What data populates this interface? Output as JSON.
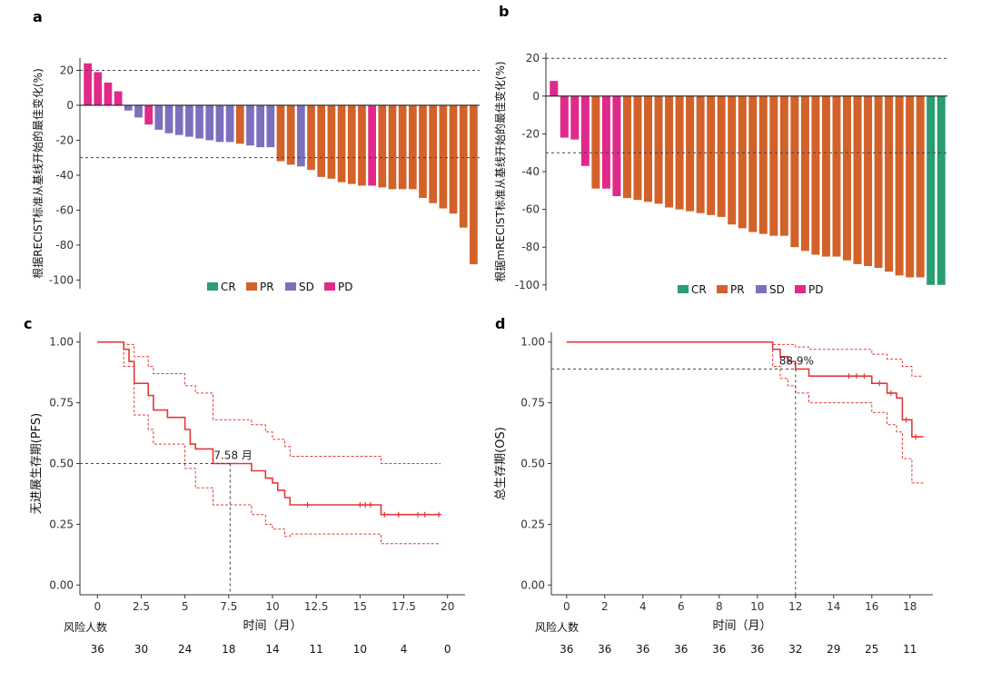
{
  "colors": {
    "CR": "#2a9d72",
    "PR": "#d2622a",
    "SD": "#7c70bd",
    "PD": "#e0298a",
    "km": "#e03a3a",
    "ref": "#444444"
  },
  "chart_data": [
    {
      "panel": "a",
      "type": "bar",
      "ylabel": "根据RECIST标准从基线开始的最佳变化(%)",
      "ylim": [
        -105,
        27
      ],
      "yticks": [
        20,
        0,
        -20,
        -40,
        -60,
        -80,
        -100
      ],
      "ref_lines": [
        20,
        -30
      ],
      "legend": [
        "CR",
        "PR",
        "SD",
        "PD"
      ],
      "values": [
        24,
        19,
        13,
        8,
        -3,
        -7,
        -11,
        -14,
        -16,
        -17,
        -18,
        -19,
        -20,
        -21,
        -21,
        -22,
        -23,
        -24,
        -24,
        -32,
        -34,
        -35,
        -37,
        -41,
        -42,
        -44,
        -45,
        -46,
        -46,
        -47,
        -48,
        -48,
        -48,
        -53,
        -56,
        -59,
        -62,
        -70,
        -91
      ],
      "groups": [
        "PD",
        "PD",
        "PD",
        "PD",
        "SD",
        "SD",
        "PD",
        "SD",
        "SD",
        "SD",
        "SD",
        "SD",
        "SD",
        "SD",
        "SD",
        "PR",
        "SD",
        "SD",
        "SD",
        "PR",
        "PR",
        "SD",
        "PR",
        "PR",
        "PR",
        "PR",
        "PR",
        "PR",
        "PD",
        "PR",
        "PR",
        "PR",
        "PR",
        "PR",
        "PR",
        "PR",
        "PR",
        "PR",
        "PR"
      ]
    },
    {
      "panel": "b",
      "type": "bar",
      "ylabel": "根据mRECIST标准从基线开始的最佳变化(%)",
      "ylim": [
        -103,
        23
      ],
      "yticks": [
        20,
        0,
        -20,
        -40,
        -60,
        -80,
        -100
      ],
      "ref_lines": [
        20,
        -30
      ],
      "legend": [
        "CR",
        "PR",
        "SD",
        "PD"
      ],
      "values": [
        8,
        -22,
        -23,
        -37,
        -49,
        -49,
        -53,
        -54,
        -55,
        -56,
        -57,
        -59,
        -60,
        -61,
        -62,
        -63,
        -64,
        -68,
        -70,
        -72,
        -73,
        -74,
        -74,
        -80,
        -82,
        -84,
        -85,
        -85,
        -87,
        -89,
        -90,
        -91,
        -93,
        -95,
        -96,
        -96,
        -100,
        -100
      ],
      "groups": [
        "PD",
        "PD",
        "PD",
        "PD",
        "PR",
        "PD",
        "PD",
        "PR",
        "PR",
        "PR",
        "PR",
        "PR",
        "PR",
        "PR",
        "PR",
        "PR",
        "PR",
        "PR",
        "PR",
        "PR",
        "PR",
        "PR",
        "PR",
        "PR",
        "PR",
        "PR",
        "PR",
        "PR",
        "PR",
        "PR",
        "PR",
        "PR",
        "PR",
        "PR",
        "PR",
        "PR",
        "CR",
        "CR"
      ]
    },
    {
      "panel": "c",
      "type": "line",
      "ylabel": "无进展生存期(PFS)",
      "xlabel": "时间（月）",
      "xlim": [
        -1,
        21
      ],
      "ylim": [
        -0.04,
        1.04
      ],
      "xticks": [
        0,
        2.5,
        5,
        7.5,
        10,
        12.5,
        15,
        17.5,
        20
      ],
      "yticks": [
        0,
        0.25,
        0.5,
        0.75,
        1.0
      ],
      "ytick_labels": [
        "0.00",
        "0.25",
        "0.50",
        "0.75",
        "1.00"
      ],
      "median": {
        "x": 7.58,
        "y": 0.5,
        "label": "7.58 月"
      },
      "step": [
        [
          0,
          1.0
        ],
        [
          1.5,
          1.0
        ],
        [
          1.5,
          0.97
        ],
        [
          1.8,
          0.97
        ],
        [
          1.8,
          0.92
        ],
        [
          2.1,
          0.92
        ],
        [
          2.1,
          0.83
        ],
        [
          2.9,
          0.83
        ],
        [
          2.9,
          0.78
        ],
        [
          3.2,
          0.78
        ],
        [
          3.2,
          0.72
        ],
        [
          4.0,
          0.72
        ],
        [
          4.0,
          0.69
        ],
        [
          5.0,
          0.69
        ],
        [
          5.0,
          0.64
        ],
        [
          5.3,
          0.64
        ],
        [
          5.3,
          0.58
        ],
        [
          5.6,
          0.58
        ],
        [
          5.6,
          0.56
        ],
        [
          6.6,
          0.56
        ],
        [
          6.6,
          0.5
        ],
        [
          8.8,
          0.5
        ],
        [
          8.8,
          0.47
        ],
        [
          9.6,
          0.47
        ],
        [
          9.6,
          0.44
        ],
        [
          10.0,
          0.44
        ],
        [
          10.0,
          0.42
        ],
        [
          10.3,
          0.42
        ],
        [
          10.3,
          0.39
        ],
        [
          10.7,
          0.39
        ],
        [
          10.7,
          0.36
        ],
        [
          11.0,
          0.36
        ],
        [
          11.0,
          0.33
        ],
        [
          16.2,
          0.33
        ],
        [
          16.2,
          0.29
        ],
        [
          19.6,
          0.29
        ]
      ],
      "upper": [
        [
          0,
          1.0
        ],
        [
          1.5,
          1.0
        ],
        [
          1.5,
          0.99
        ],
        [
          2.1,
          0.99
        ],
        [
          2.1,
          0.94
        ],
        [
          2.9,
          0.94
        ],
        [
          2.9,
          0.9
        ],
        [
          3.2,
          0.9
        ],
        [
          3.2,
          0.87
        ],
        [
          5.0,
          0.87
        ],
        [
          5.0,
          0.82
        ],
        [
          5.6,
          0.82
        ],
        [
          5.6,
          0.79
        ],
        [
          6.6,
          0.79
        ],
        [
          6.6,
          0.68
        ],
        [
          8.8,
          0.68
        ],
        [
          8.8,
          0.66
        ],
        [
          9.6,
          0.66
        ],
        [
          9.6,
          0.63
        ],
        [
          10.0,
          0.63
        ],
        [
          10.0,
          0.6
        ],
        [
          10.7,
          0.6
        ],
        [
          10.7,
          0.57
        ],
        [
          11.0,
          0.57
        ],
        [
          11.0,
          0.53
        ],
        [
          16.2,
          0.53
        ],
        [
          16.2,
          0.5
        ],
        [
          19.6,
          0.5
        ]
      ],
      "lower": [
        [
          0,
          1.0
        ],
        [
          1.5,
          1.0
        ],
        [
          1.5,
          0.9
        ],
        [
          2.1,
          0.9
        ],
        [
          2.1,
          0.7
        ],
        [
          2.9,
          0.7
        ],
        [
          2.9,
          0.64
        ],
        [
          3.2,
          0.64
        ],
        [
          3.2,
          0.58
        ],
        [
          5.0,
          0.58
        ],
        [
          5.0,
          0.48
        ],
        [
          5.6,
          0.48
        ],
        [
          5.6,
          0.4
        ],
        [
          6.6,
          0.4
        ],
        [
          6.6,
          0.33
        ],
        [
          8.8,
          0.33
        ],
        [
          8.8,
          0.29
        ],
        [
          9.6,
          0.29
        ],
        [
          9.6,
          0.25
        ],
        [
          10.0,
          0.25
        ],
        [
          10.0,
          0.23
        ],
        [
          10.7,
          0.23
        ],
        [
          10.7,
          0.2
        ],
        [
          11.0,
          0.2
        ],
        [
          11.0,
          0.21
        ],
        [
          16.2,
          0.21
        ],
        [
          16.2,
          0.17
        ],
        [
          19.6,
          0.17
        ]
      ],
      "censor": [
        [
          12.0,
          0.33
        ],
        [
          15.0,
          0.33
        ],
        [
          15.3,
          0.33
        ],
        [
          15.6,
          0.33
        ],
        [
          16.4,
          0.29
        ],
        [
          17.2,
          0.29
        ],
        [
          18.3,
          0.29
        ],
        [
          18.7,
          0.29
        ],
        [
          19.5,
          0.29
        ]
      ],
      "risk_label": "风险人数",
      "risk": [
        "36",
        "30",
        "24",
        "18",
        "14",
        "11",
        "10",
        "4",
        "0"
      ]
    },
    {
      "panel": "d",
      "type": "line",
      "ylabel": "总生存期(OS)",
      "xlabel": "时间（月）",
      "xlim": [
        -0.8,
        19.2
      ],
      "ylim": [
        -0.04,
        1.04
      ],
      "xticks": [
        0,
        2,
        4,
        6,
        8,
        10,
        12,
        14,
        16,
        18
      ],
      "yticks": [
        0,
        0.25,
        0.5,
        0.75,
        1.0
      ],
      "ytick_labels": [
        "0.00",
        "0.25",
        "0.50",
        "0.75",
        "1.00"
      ],
      "median": {
        "x": 12,
        "y": 0.889,
        "label": "88.9%"
      },
      "step": [
        [
          0,
          1.0
        ],
        [
          10.8,
          1.0
        ],
        [
          10.8,
          0.97
        ],
        [
          11.2,
          0.97
        ],
        [
          11.2,
          0.94
        ],
        [
          11.6,
          0.94
        ],
        [
          11.6,
          0.92
        ],
        [
          12.0,
          0.92
        ],
        [
          12.0,
          0.889
        ],
        [
          12.7,
          0.889
        ],
        [
          12.7,
          0.86
        ],
        [
          16.0,
          0.86
        ],
        [
          16.0,
          0.83
        ],
        [
          16.8,
          0.83
        ],
        [
          16.8,
          0.79
        ],
        [
          17.3,
          0.79
        ],
        [
          17.3,
          0.77
        ],
        [
          17.6,
          0.77
        ],
        [
          17.6,
          0.68
        ],
        [
          18.1,
          0.68
        ],
        [
          18.1,
          0.61
        ],
        [
          18.7,
          0.61
        ]
      ],
      "upper": [
        [
          0,
          1.0
        ],
        [
          10.8,
          1.0
        ],
        [
          10.8,
          0.99
        ],
        [
          12.0,
          0.99
        ],
        [
          12.0,
          0.98
        ],
        [
          12.7,
          0.98
        ],
        [
          12.7,
          0.97
        ],
        [
          16.0,
          0.97
        ],
        [
          16.0,
          0.95
        ],
        [
          16.8,
          0.95
        ],
        [
          16.8,
          0.93
        ],
        [
          17.6,
          0.93
        ],
        [
          17.6,
          0.9
        ],
        [
          18.1,
          0.9
        ],
        [
          18.1,
          0.86
        ],
        [
          18.7,
          0.86
        ]
      ],
      "lower": [
        [
          0,
          1.0
        ],
        [
          10.8,
          1.0
        ],
        [
          10.8,
          0.9
        ],
        [
          11.2,
          0.9
        ],
        [
          11.2,
          0.85
        ],
        [
          11.6,
          0.85
        ],
        [
          11.6,
          0.82
        ],
        [
          12.0,
          0.82
        ],
        [
          12.0,
          0.79
        ],
        [
          12.7,
          0.79
        ],
        [
          12.7,
          0.75
        ],
        [
          16.0,
          0.75
        ],
        [
          16.0,
          0.71
        ],
        [
          16.8,
          0.71
        ],
        [
          16.8,
          0.66
        ],
        [
          17.3,
          0.66
        ],
        [
          17.3,
          0.63
        ],
        [
          17.6,
          0.63
        ],
        [
          17.6,
          0.52
        ],
        [
          18.1,
          0.52
        ],
        [
          18.1,
          0.42
        ],
        [
          18.7,
          0.42
        ]
      ],
      "censor": [
        [
          14.8,
          0.86
        ],
        [
          15.2,
          0.86
        ],
        [
          15.6,
          0.86
        ],
        [
          16.4,
          0.83
        ],
        [
          17.0,
          0.79
        ],
        [
          17.8,
          0.68
        ],
        [
          18.3,
          0.61
        ]
      ],
      "risk_label": "风险人数",
      "risk": [
        "36",
        "36",
        "36",
        "36",
        "36",
        "36",
        "32",
        "29",
        "25",
        "11"
      ]
    }
  ]
}
